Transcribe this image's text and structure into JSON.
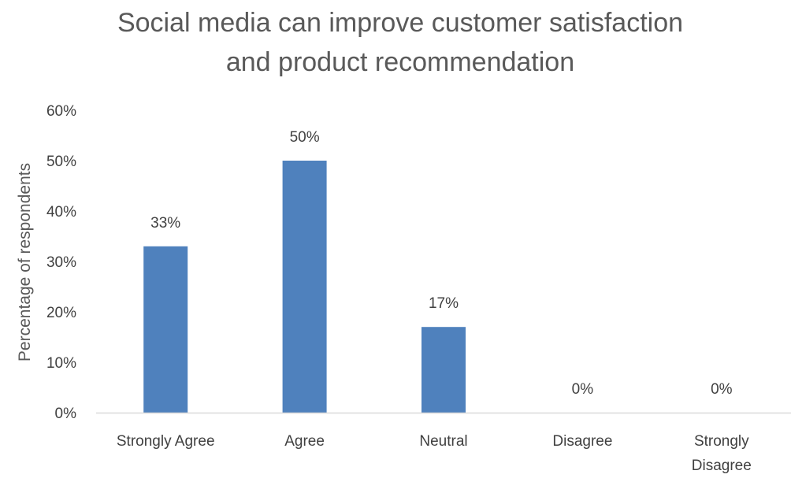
{
  "chart_data": {
    "type": "bar",
    "title_lines": [
      "Social media can improve customer satisfaction",
      "and product recommendation"
    ],
    "xlabel": "",
    "ylabel": "Percentage of respondents",
    "categories": [
      [
        "Strongly Agree"
      ],
      [
        "Agree"
      ],
      [
        "Neutral"
      ],
      [
        "Disagree"
      ],
      [
        "Strongly",
        "Disagree"
      ]
    ],
    "values": [
      33,
      50,
      17,
      0,
      0
    ],
    "data_labels": [
      "33%",
      "50%",
      "17%",
      "0%",
      "0%"
    ],
    "ylim": [
      0,
      60
    ],
    "yticks": [
      0,
      10,
      20,
      30,
      40,
      50,
      60
    ],
    "ytick_labels": [
      "0%",
      "10%",
      "20%",
      "30%",
      "40%",
      "50%",
      "60%"
    ],
    "grid": false,
    "bar_color": "#4f81bd",
    "axis_color": "#d9d9d9"
  }
}
